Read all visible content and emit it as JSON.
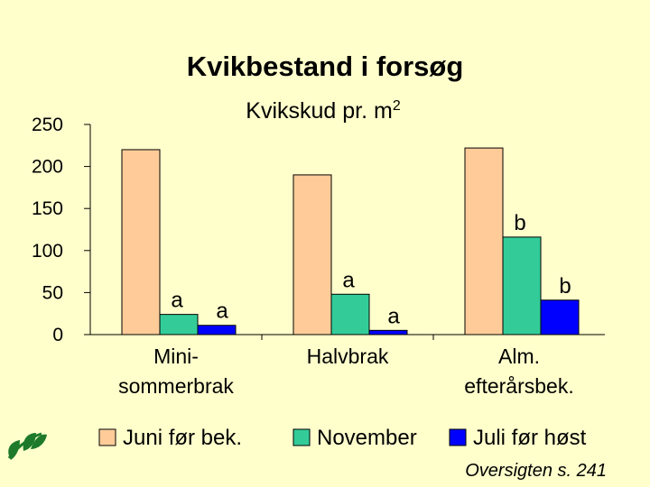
{
  "chart_data": {
    "type": "bar",
    "title": "Kvikbestand i forsøg",
    "subtitle": "Kvikskud pr. m",
    "subtitle_superscript": "2",
    "categories": [
      [
        "Mini-",
        "sommerbrak"
      ],
      [
        "Halvbrak"
      ],
      [
        "Alm.",
        "efterårsbek."
      ]
    ],
    "series": [
      {
        "name": "Juni før bek.",
        "color": "#ffcc99",
        "values": [
          220,
          190,
          222
        ],
        "labels": [
          "",
          "",
          ""
        ]
      },
      {
        "name": "November",
        "color": "#33cc99",
        "values": [
          24,
          48,
          116
        ],
        "labels": [
          "a",
          "a",
          "b"
        ]
      },
      {
        "name": "Juli før høst",
        "color": "#0000ff",
        "values": [
          11,
          5,
          41
        ],
        "labels": [
          "a",
          "a",
          "b"
        ]
      }
    ],
    "ylim": [
      0,
      250
    ],
    "yticks": [
      0,
      50,
      100,
      150,
      200,
      250
    ],
    "grid": false,
    "legend_position": "bottom"
  },
  "source_note": "Oversigten s. 241",
  "logo": {
    "icon": "green-leaves-logo",
    "color": "#1e7a2a"
  }
}
